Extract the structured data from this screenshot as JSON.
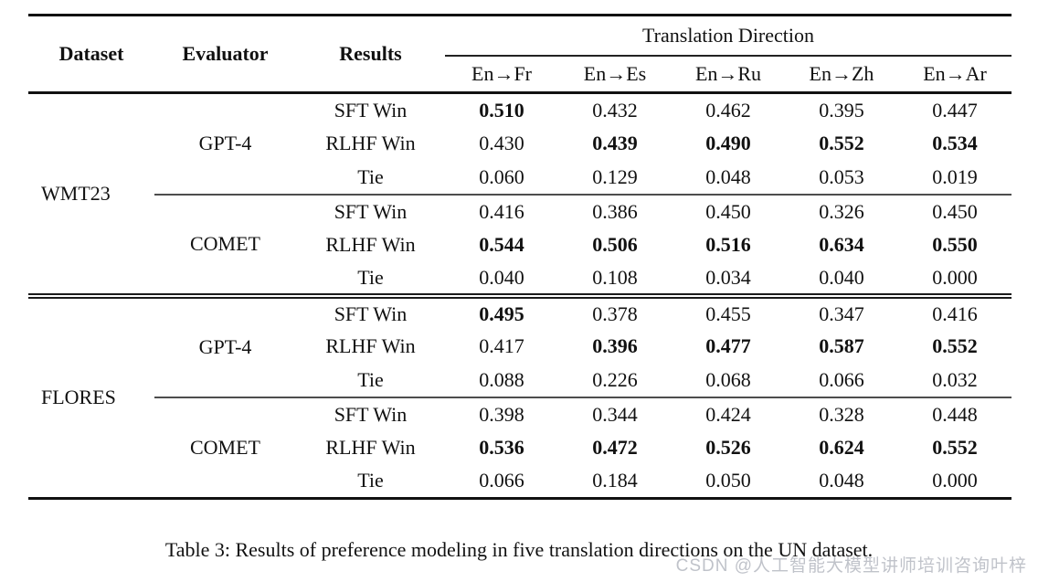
{
  "table": {
    "header": {
      "dataset": "Dataset",
      "evaluator": "Evaluator",
      "results": "Results",
      "direction_group": "Translation Direction",
      "directions": [
        "En→Fr",
        "En→Es",
        "En→Ru",
        "En→Zh",
        "En→Ar"
      ]
    },
    "sections": [
      {
        "dataset": "WMT23",
        "blocks": [
          {
            "evaluator": "GPT-4",
            "rows": [
              {
                "result": "SFT Win",
                "values": [
                  "0.510",
                  "0.432",
                  "0.462",
                  "0.395",
                  "0.447"
                ],
                "bold": [
                  true,
                  false,
                  false,
                  false,
                  false
                ]
              },
              {
                "result": "RLHF Win",
                "values": [
                  "0.430",
                  "0.439",
                  "0.490",
                  "0.552",
                  "0.534"
                ],
                "bold": [
                  false,
                  true,
                  true,
                  true,
                  true
                ]
              },
              {
                "result": "Tie",
                "values": [
                  "0.060",
                  "0.129",
                  "0.048",
                  "0.053",
                  "0.019"
                ],
                "bold": [
                  false,
                  false,
                  false,
                  false,
                  false
                ]
              }
            ]
          },
          {
            "evaluator": "COMET",
            "rows": [
              {
                "result": "SFT Win",
                "values": [
                  "0.416",
                  "0.386",
                  "0.450",
                  "0.326",
                  "0.450"
                ],
                "bold": [
                  false,
                  false,
                  false,
                  false,
                  false
                ]
              },
              {
                "result": "RLHF Win",
                "values": [
                  "0.544",
                  "0.506",
                  "0.516",
                  "0.634",
                  "0.550"
                ],
                "bold": [
                  true,
                  true,
                  true,
                  true,
                  true
                ]
              },
              {
                "result": "Tie",
                "values": [
                  "0.040",
                  "0.108",
                  "0.034",
                  "0.040",
                  "0.000"
                ],
                "bold": [
                  false,
                  false,
                  false,
                  false,
                  false
                ]
              }
            ]
          }
        ]
      },
      {
        "dataset": "FLORES",
        "blocks": [
          {
            "evaluator": "GPT-4",
            "rows": [
              {
                "result": "SFT Win",
                "values": [
                  "0.495",
                  "0.378",
                  "0.455",
                  "0.347",
                  "0.416"
                ],
                "bold": [
                  true,
                  false,
                  false,
                  false,
                  false
                ]
              },
              {
                "result": "RLHF Win",
                "values": [
                  "0.417",
                  "0.396",
                  "0.477",
                  "0.587",
                  "0.552"
                ],
                "bold": [
                  false,
                  true,
                  true,
                  true,
                  true
                ]
              },
              {
                "result": "Tie",
                "values": [
                  "0.088",
                  "0.226",
                  "0.068",
                  "0.066",
                  "0.032"
                ],
                "bold": [
                  false,
                  false,
                  false,
                  false,
                  false
                ]
              }
            ]
          },
          {
            "evaluator": "COMET",
            "rows": [
              {
                "result": "SFT Win",
                "values": [
                  "0.398",
                  "0.344",
                  "0.424",
                  "0.328",
                  "0.448"
                ],
                "bold": [
                  false,
                  false,
                  false,
                  false,
                  false
                ]
              },
              {
                "result": "RLHF Win",
                "values": [
                  "0.536",
                  "0.472",
                  "0.526",
                  "0.624",
                  "0.552"
                ],
                "bold": [
                  true,
                  true,
                  true,
                  true,
                  true
                ]
              },
              {
                "result": "Tie",
                "values": [
                  "0.066",
                  "0.184",
                  "0.050",
                  "0.048",
                  "0.000"
                ],
                "bold": [
                  false,
                  false,
                  false,
                  false,
                  false
                ]
              }
            ]
          }
        ]
      }
    ]
  },
  "caption": "Table 3: Results of preference modeling in five translation directions on the UN dataset.",
  "watermark": "CSDN @人工智能大模型讲师培训咨询叶梓"
}
